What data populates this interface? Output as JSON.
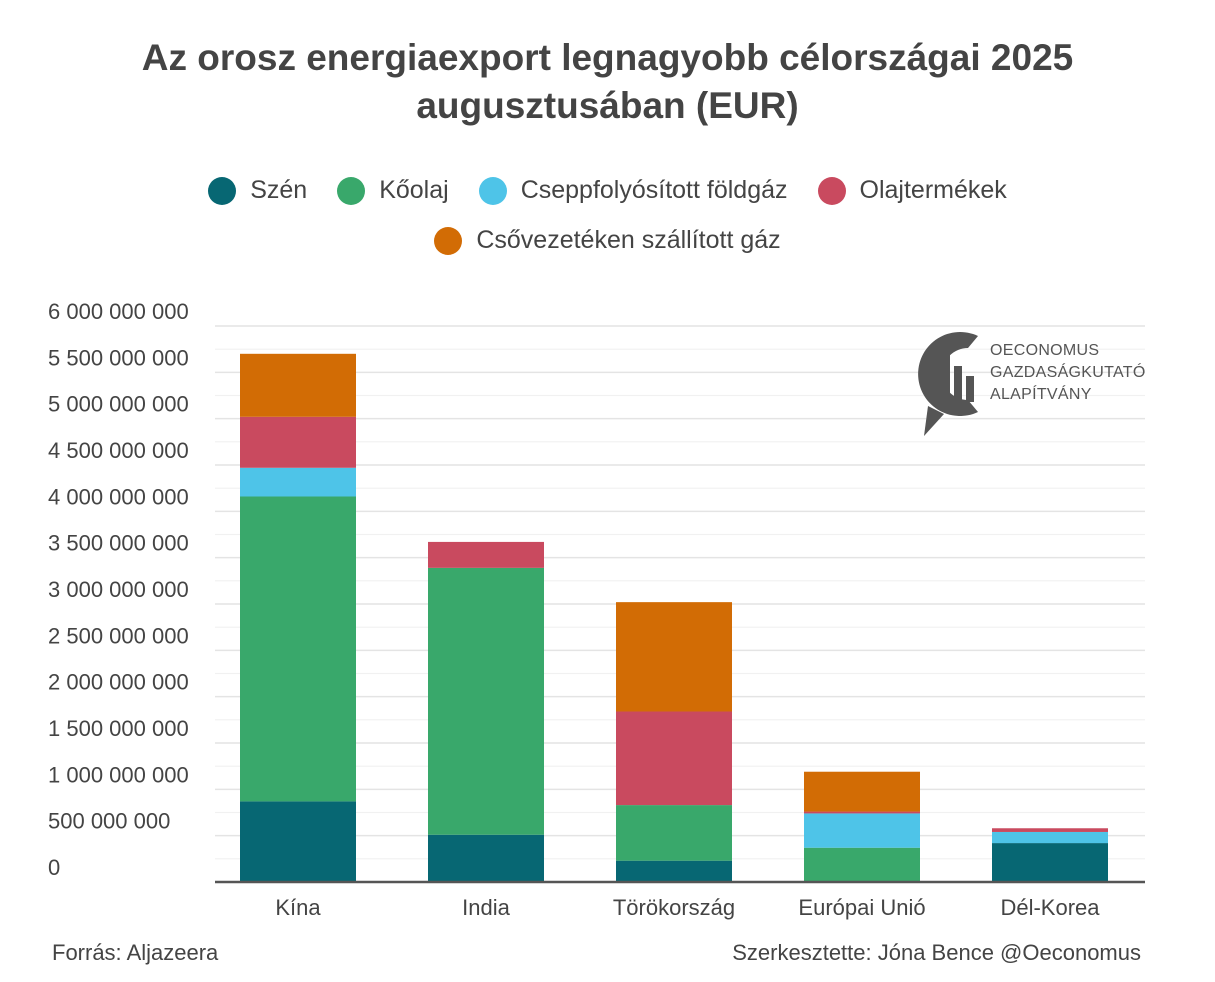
{
  "title_line1": "Az orosz energiaexport legnagyobb célországai 2025",
  "title_line2": "augusztusában (EUR)",
  "footer": {
    "source": "Forrás: Aljazeera",
    "editor": "Szerkesztette: Jóna Bence @Oeconomus"
  },
  "logo": {
    "line1": "OECONOMUS",
    "line2": "GAZDASÁGKUTATÓ",
    "line3": "ALAPÍTVÁNY"
  },
  "colors": {
    "Szén": "#076773",
    "Kőolaj": "#39a86b",
    "Cseppfolyósított földgáz": "#4ec4e8",
    "Olajtermékek": "#c94a5f",
    "Csővezetéken szállított gáz": "#d26c05"
  },
  "chart_data": {
    "type": "bar",
    "stacked": true,
    "title": "Az orosz energiaexport legnagyobb célországai 2025 augusztusában (EUR)",
    "xlabel": "",
    "ylabel": "",
    "ylim": [
      0,
      6000000000
    ],
    "yticks": [
      0,
      500000000,
      1000000000,
      1500000000,
      2000000000,
      2500000000,
      3000000000,
      3500000000,
      4000000000,
      4500000000,
      5000000000,
      5500000000,
      6000000000
    ],
    "ytick_labels": [
      "0",
      "500 000 000",
      "1 000 000 000",
      "1 500 000 000",
      "2 000 000 000",
      "2 500 000 000",
      "3 000 000 000",
      "3 500 000 000",
      "4 000 000 000",
      "4 500 000 000",
      "5 000 000 000",
      "5 500 000 000",
      "6 000 000 000"
    ],
    "categories": [
      "Kína",
      "India",
      "Törökország",
      "Európai Unió",
      "Dél-Korea"
    ],
    "series": [
      {
        "name": "Szén",
        "values": [
          870000000,
          510000000,
          230000000,
          0,
          420000000
        ]
      },
      {
        "name": "Kőolaj",
        "values": [
          3290000000,
          2880000000,
          600000000,
          370000000,
          0
        ]
      },
      {
        "name": "Cseppfolyósított földgáz",
        "values": [
          310000000,
          0,
          0,
          370000000,
          120000000
        ]
      },
      {
        "name": "Olajtermékek",
        "values": [
          550000000,
          280000000,
          1010000000,
          20000000,
          40000000
        ]
      },
      {
        "name": "Csővezetéken szállított gáz",
        "values": [
          680000000,
          0,
          1180000000,
          430000000,
          0
        ]
      }
    ],
    "legend_position": "top",
    "grid": true
  }
}
